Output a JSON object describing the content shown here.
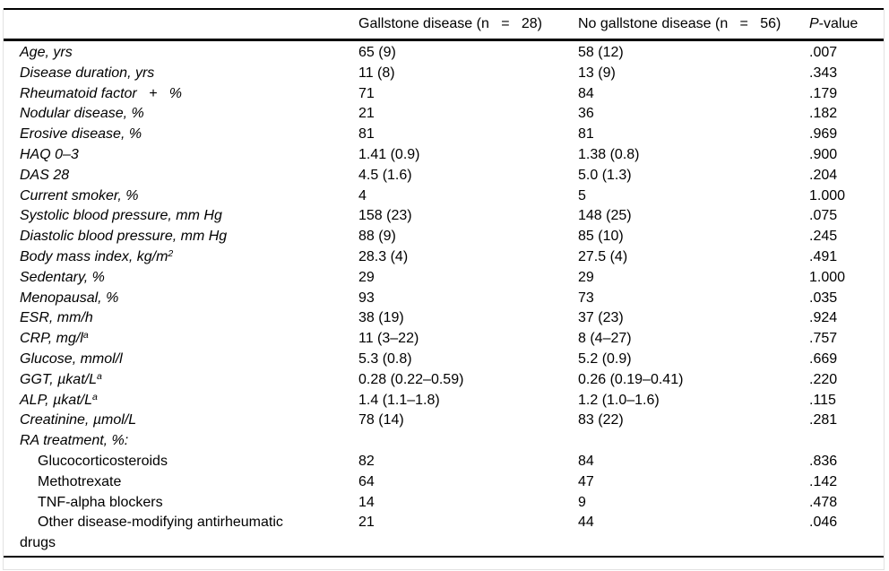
{
  "table": {
    "headers": {
      "label_col": "",
      "gallstone": "Gallstone disease (n   =   28)",
      "no_gallstone": "No gallstone disease (n   =   56)",
      "pvalue_italic": "P",
      "pvalue_rest": "-value"
    },
    "rows": [
      {
        "label": "Age, yrs",
        "italic": true,
        "indent": false,
        "gallstone": "65 (9)",
        "no_gallstone": "58 (12)",
        "p": ".007"
      },
      {
        "label": "Disease duration, yrs",
        "italic": true,
        "indent": false,
        "gallstone": "11 (8)",
        "no_gallstone": "13 (9)",
        "p": ".343"
      },
      {
        "label": "Rheumatoid factor   +   %",
        "italic": true,
        "indent": false,
        "gallstone": "71",
        "no_gallstone": "84",
        "p": ".179"
      },
      {
        "label": "Nodular disease, %",
        "italic": true,
        "indent": false,
        "gallstone": "21",
        "no_gallstone": "36",
        "p": ".182"
      },
      {
        "label": "Erosive disease, %",
        "italic": true,
        "indent": false,
        "gallstone": "81",
        "no_gallstone": "81",
        "p": ".969"
      },
      {
        "label": "HAQ 0–3",
        "italic": true,
        "indent": false,
        "gallstone": "1.41 (0.9)",
        "no_gallstone": "1.38 (0.8)",
        "p": ".900"
      },
      {
        "label": "DAS 28",
        "italic": true,
        "indent": false,
        "gallstone": "4.5 (1.6)",
        "no_gallstone": "5.0 (1.3)",
        "p": ".204"
      },
      {
        "label": "Current smoker, %",
        "italic": true,
        "indent": false,
        "gallstone": "4",
        "no_gallstone": "5",
        "p": "1.000"
      },
      {
        "label": "Systolic blood pressure, mm Hg",
        "italic": true,
        "indent": false,
        "gallstone": "158 (23)",
        "no_gallstone": "148 (25)",
        "p": ".075"
      },
      {
        "label": "Diastolic blood pressure, mm Hg",
        "italic": true,
        "indent": false,
        "gallstone": "88 (9)",
        "no_gallstone": "85 (10)",
        "p": ".245"
      },
      {
        "label": "Body mass index, kg/m",
        "sup": "2",
        "italic": true,
        "indent": false,
        "gallstone": "28.3 (4)",
        "no_gallstone": "27.5 (4)",
        "p": ".491"
      },
      {
        "label": "Sedentary, %",
        "italic": true,
        "indent": false,
        "gallstone": "29",
        "no_gallstone": "29",
        "p": "1.000"
      },
      {
        "label": "Menopausal, %",
        "italic": true,
        "indent": false,
        "gallstone": "93",
        "no_gallstone": "73",
        "p": ".035"
      },
      {
        "label": "ESR, mm/h",
        "italic": true,
        "indent": false,
        "gallstone": "38 (19)",
        "no_gallstone": "37 (23)",
        "p": ".924"
      },
      {
        "label": "CRP, mg/l",
        "sup": "a",
        "italic": true,
        "indent": false,
        "gallstone": "11 (3–22)",
        "no_gallstone": "8 (4–27)",
        "p": ".757"
      },
      {
        "label": "Glucose, mmol/l",
        "italic": true,
        "indent": false,
        "gallstone": "5.3 (0.8)",
        "no_gallstone": "5.2 (0.9)",
        "p": ".669"
      },
      {
        "label": "GGT, µkat/L",
        "sup": "a",
        "italic": true,
        "indent": false,
        "gallstone": "0.28 (0.22–0.59)",
        "no_gallstone": "0.26 (0.19–0.41)",
        "p": ".220"
      },
      {
        "label": "ALP, µkat/L",
        "sup": "a",
        "italic": true,
        "indent": false,
        "gallstone": "1.4 (1.1–1.8)",
        "no_gallstone": "1.2 (1.0–1.6)",
        "p": ".115"
      },
      {
        "label": "Creatinine, µmol/L",
        "italic": true,
        "indent": false,
        "gallstone": "78 (14)",
        "no_gallstone": "83 (22)",
        "p": ".281"
      },
      {
        "label": "RA treatment, %:",
        "italic": true,
        "indent": false,
        "gallstone": "",
        "no_gallstone": "",
        "p": ""
      },
      {
        "label": "Glucocorticosteroids",
        "italic": false,
        "indent": true,
        "gallstone": "82",
        "no_gallstone": "84",
        "p": ".836"
      },
      {
        "label": "Methotrexate",
        "italic": false,
        "indent": true,
        "gallstone": "64",
        "no_gallstone": "47",
        "p": ".142"
      },
      {
        "label": "TNF-alpha blockers",
        "italic": false,
        "indent": true,
        "gallstone": "14",
        "no_gallstone": "9",
        "p": ".478"
      },
      {
        "label": "Other disease-modifying antirheumatic",
        "label2": "drugs",
        "italic": false,
        "indent": true,
        "gallstone": "21",
        "no_gallstone": "44",
        "p": ".046"
      }
    ]
  }
}
